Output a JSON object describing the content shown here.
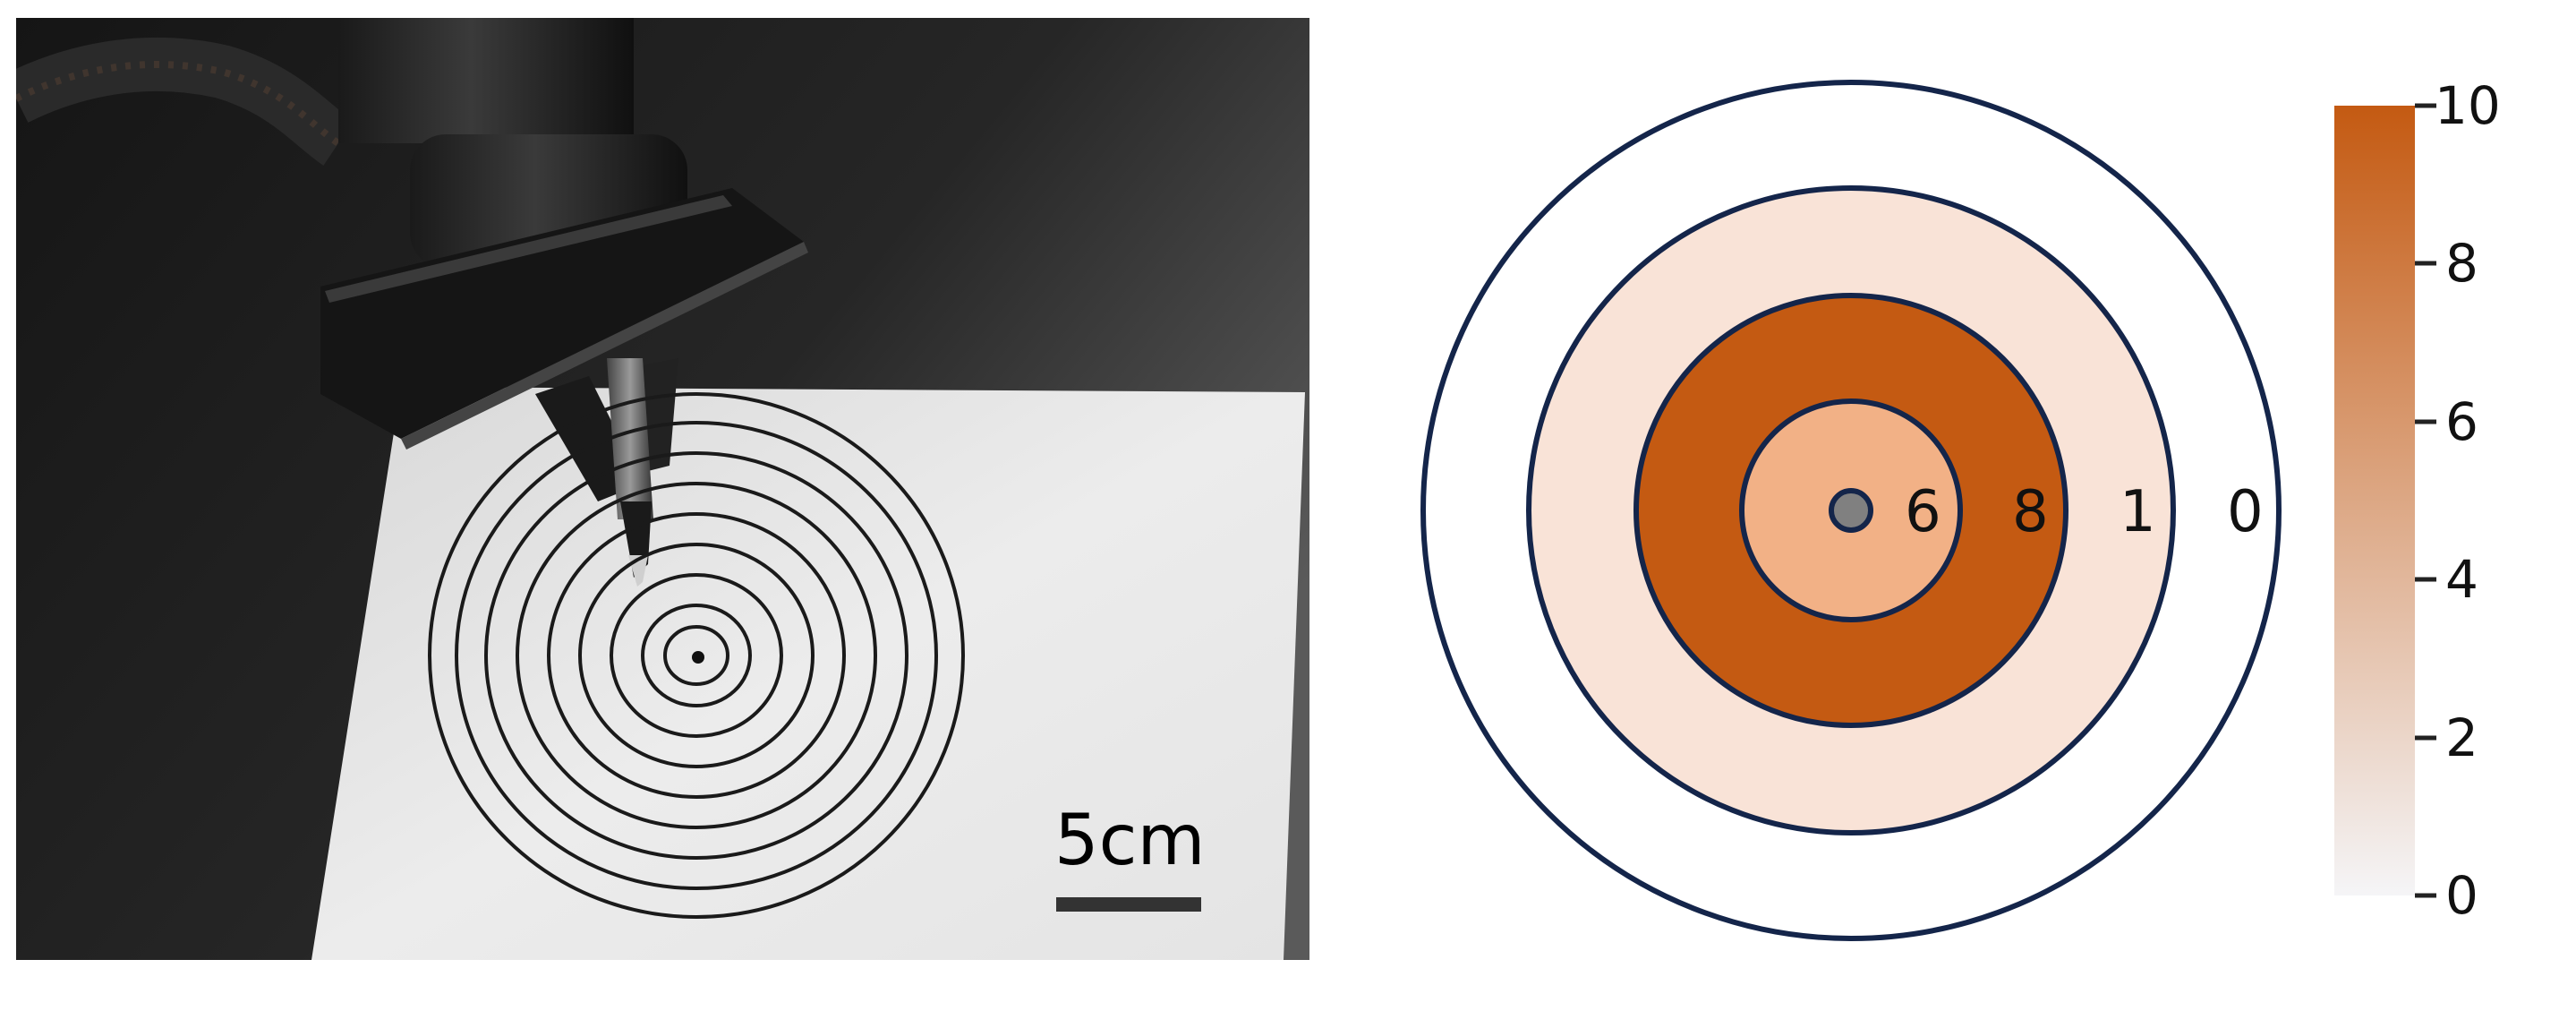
{
  "photo": {
    "scale_bar_label": "5cm",
    "paper_color": "#eaeaea",
    "background_color": "#1e1e1e",
    "ring_count": 9
  },
  "target": {
    "ring_values": [
      "6",
      "8",
      "1",
      "0"
    ],
    "ring_fill_colors": [
      "#f2b186",
      "#c45a12",
      "#f9e3d7",
      "#ffffff"
    ],
    "ring_stroke_color": "#14254a",
    "center_dot_color": "#808080"
  },
  "colorbar": {
    "ticks": [
      "0",
      "2",
      "4",
      "6",
      "8",
      "10"
    ],
    "min_color": "#f5f5f7",
    "max_color": "#c45a12"
  }
}
